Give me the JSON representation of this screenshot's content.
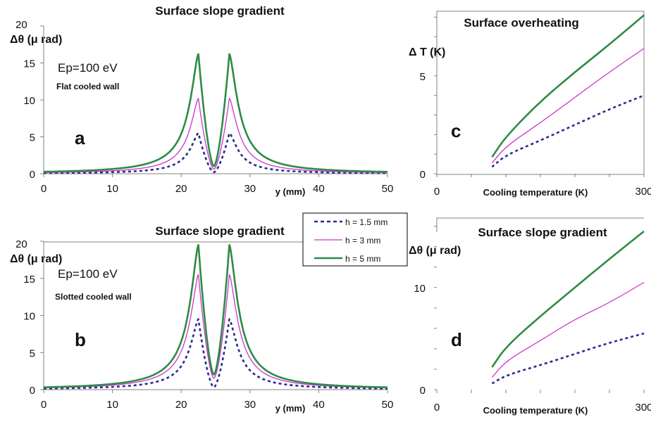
{
  "colors": {
    "h15": "#2b2b8f",
    "h3": "#cc33cc",
    "h5": "#2e8b46",
    "axis": "#808080",
    "text": "#111111"
  },
  "legend": {
    "items": [
      {
        "label": "h = 1.5 mm",
        "style": "dashed",
        "color": "#2b2b8f"
      },
      {
        "label": "h = 3 mm",
        "style": "solid",
        "color": "#cc33cc"
      },
      {
        "label": "h = 5 mm",
        "style": "solid-thick",
        "color": "#2e8b46"
      }
    ]
  },
  "chart_data": [
    {
      "id": "a",
      "type": "line",
      "title": "Surface slope gradient",
      "ylabel": "Δθ (μ rad)",
      "xlabel": "y (mm)",
      "xlim": [
        0,
        50
      ],
      "ylim": [
        0,
        20
      ],
      "xticks": [
        "0",
        "10",
        "20",
        "30",
        "40",
        "50"
      ],
      "yticks": [
        "0",
        "5",
        "10",
        "15",
        "20"
      ],
      "annotation": "Ep=100 eV",
      "subannotation": "Flat cooled wall",
      "panel_letter": "a",
      "peak_positions": [
        22.5,
        27
      ],
      "series": [
        {
          "name": "h = 1.5 mm",
          "peak": 5.5,
          "center_dip": 0.2
        },
        {
          "name": "h = 3 mm",
          "peak": 10.2,
          "center_dip": 0.6
        },
        {
          "name": "h = 5 mm",
          "peak": 16.2,
          "center_dip": 1.0
        }
      ]
    },
    {
      "id": "b",
      "type": "line",
      "title": "Surface slope gradient",
      "ylabel": "Δθ (μ rad)",
      "xlabel": "y (mm)",
      "xlim": [
        0,
        50
      ],
      "ylim": [
        0,
        20
      ],
      "xticks": [
        "0",
        "10",
        "20",
        "30",
        "40",
        "50"
      ],
      "yticks": [
        "0",
        "5",
        "10",
        "15",
        "20"
      ],
      "annotation": "Ep=100 eV",
      "subannotation": "Slotted cooled wall",
      "panel_letter": "b",
      "peak_positions": [
        22.5,
        27
      ],
      "series": [
        {
          "name": "h = 1.5 mm",
          "peak": 9.5,
          "center_dip": 0.3
        },
        {
          "name": "h = 3 mm",
          "peak": 15.5,
          "center_dip": 1.5
        },
        {
          "name": "h = 5 mm",
          "peak": 19.5,
          "center_dip": 2.0
        }
      ]
    },
    {
      "id": "c",
      "type": "line",
      "title": "Surface overheating",
      "ylabel": "Δ T (K)",
      "xlabel": "Cooling temperature (K)",
      "xlim": [
        0,
        300
      ],
      "ylim": [
        0,
        8.3
      ],
      "xticks": [
        "0",
        "300"
      ],
      "yticks": [
        "0",
        "5"
      ],
      "panel_letter": "c",
      "series": [
        {
          "name": "h = 1.5 mm",
          "x": [
            80,
            100,
            150,
            200,
            250,
            300
          ],
          "y": [
            0.35,
            0.95,
            1.7,
            2.5,
            3.3,
            4.0
          ]
        },
        {
          "name": "h = 3 mm",
          "x": [
            80,
            100,
            150,
            200,
            250,
            300
          ],
          "y": [
            0.55,
            1.4,
            2.6,
            3.9,
            5.2,
            6.4
          ]
        },
        {
          "name": "h = 5 mm",
          "x": [
            80,
            100,
            150,
            200,
            250,
            300
          ],
          "y": [
            0.85,
            1.9,
            3.7,
            5.2,
            6.6,
            8.1
          ]
        }
      ]
    },
    {
      "id": "d",
      "type": "line",
      "title": "Surface slope gradient",
      "ylabel": "Δθ (μ rad)",
      "xlabel": "Cooling temperature (K)",
      "xlim": [
        0,
        300
      ],
      "ylim": [
        0,
        16.8
      ],
      "xticks": [
        "0",
        "300"
      ],
      "yticks": [
        "0",
        "10"
      ],
      "panel_letter": "d",
      "series": [
        {
          "name": "h = 1.5 mm",
          "x": [
            80,
            100,
            150,
            200,
            250,
            300
          ],
          "y": [
            0.6,
            1.4,
            2.4,
            3.5,
            4.6,
            5.5
          ]
        },
        {
          "name": "h = 3 mm",
          "x": [
            80,
            100,
            150,
            200,
            250,
            300
          ],
          "y": [
            1.2,
            2.8,
            4.8,
            6.9,
            8.5,
            10.5
          ]
        },
        {
          "name": "h = 5 mm",
          "x": [
            80,
            100,
            150,
            200,
            250,
            300
          ],
          "y": [
            2.2,
            4.2,
            7.2,
            10.0,
            12.8,
            15.5
          ]
        }
      ]
    }
  ]
}
